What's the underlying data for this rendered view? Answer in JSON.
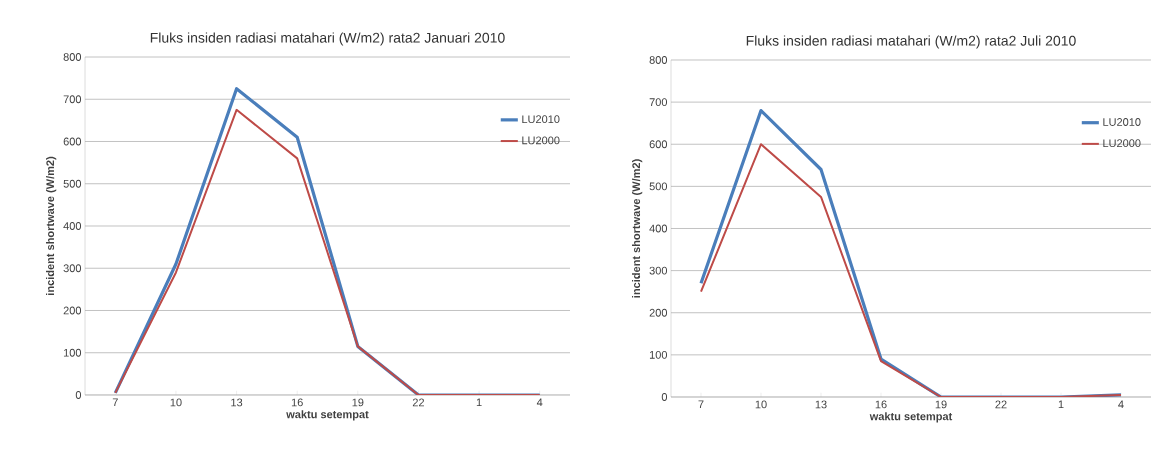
{
  "chart_data": [
    {
      "type": "line",
      "title": "Fluks insiden radiasi matahari (W/m2) rata2 Januari 2010",
      "xlabel": "waktu setempat",
      "ylabel": "incident shortwave (W/m2)",
      "categories": [
        "7",
        "10",
        "13",
        "16",
        "19",
        "22",
        "1",
        "4"
      ],
      "series": [
        {
          "name": "LU2010",
          "color": "#4a7ebb",
          "values": [
            5,
            310,
            725,
            610,
            115,
            0,
            0,
            0
          ]
        },
        {
          "name": "LU2000",
          "color": "#be4b48",
          "values": [
            5,
            290,
            675,
            560,
            115,
            0,
            0,
            0
          ]
        }
      ],
      "ylim": [
        0,
        800
      ],
      "yticks": [
        0,
        100,
        200,
        300,
        400,
        500,
        600,
        700,
        800
      ],
      "grid": "y",
      "legend": "right"
    },
    {
      "type": "line",
      "title": "Fluks insiden radiasi matahari (W/m2) rata2 Juli 2010",
      "xlabel": "waktu setempat",
      "ylabel": "incident shortwave (W/m2)",
      "categories": [
        "7",
        "10",
        "13",
        "16",
        "19",
        "22",
        "1",
        "4"
      ],
      "series": [
        {
          "name": "LU2010",
          "color": "#4a7ebb",
          "values": [
            270,
            680,
            540,
            90,
            0,
            0,
            0,
            5
          ]
        },
        {
          "name": "LU2000",
          "color": "#be4b48",
          "values": [
            250,
            600,
            475,
            85,
            0,
            0,
            0,
            5
          ]
        }
      ],
      "ylim": [
        0,
        800
      ],
      "yticks": [
        0,
        100,
        200,
        300,
        400,
        500,
        600,
        700,
        800
      ],
      "grid": "y",
      "legend": "right"
    }
  ]
}
